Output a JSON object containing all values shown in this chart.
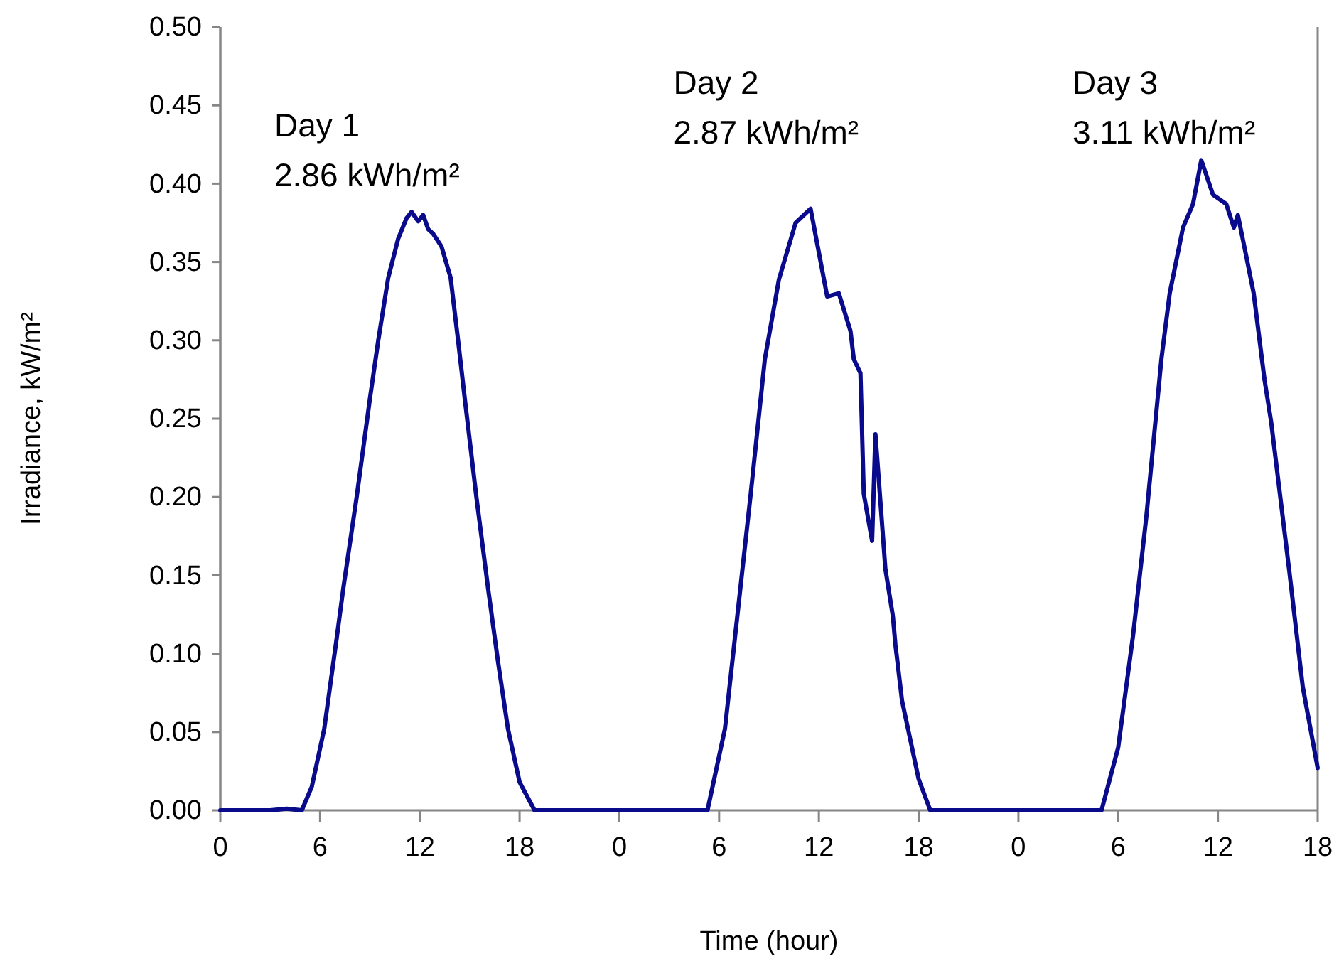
{
  "chart_data": [
    {
      "type": "line",
      "ylabel": "Irradiance, kW/m²",
      "xlim": [
        0,
        24
      ],
      "ylim": [
        0,
        0.5
      ],
      "xticks": [
        0,
        6,
        12,
        18
      ],
      "yticks": [
        {
          "value": 0,
          "label": "0.00"
        },
        {
          "value": 0.05,
          "label": "0.05"
        },
        {
          "value": 0.1,
          "label": "0.10"
        },
        {
          "value": 0.15,
          "label": "0.15"
        },
        {
          "value": 0.2,
          "label": "0.20"
        },
        {
          "value": 0.25,
          "label": "0.25"
        },
        {
          "value": 0.3,
          "label": "0.30"
        },
        {
          "value": 0.35,
          "label": "0.35"
        },
        {
          "value": 0.4,
          "label": "0.40"
        },
        {
          "value": 0.45,
          "label": "0.45"
        },
        {
          "value": 0.5,
          "label": "0.50"
        }
      ],
      "grid": false,
      "marker": "none",
      "line_style": "solid",
      "series": [
        {
          "color": "#0a0a8c",
          "x": [
            0,
            3,
            4,
            4.9,
            5.5,
            6.25,
            7,
            7.4,
            8.2,
            9,
            9.5,
            10.1,
            10.7,
            11.2,
            11.5,
            11.9,
            12.2,
            12.5,
            12.8,
            13.3,
            13.85,
            14.3,
            14.7,
            15.4,
            16.1,
            16.7,
            17.3,
            18,
            18.9,
            24
          ],
          "values": [
            0,
            0,
            0.001,
            0,
            0.015,
            0.052,
            0.11,
            0.142,
            0.2,
            0.263,
            0.3,
            0.34,
            0.365,
            0.378,
            0.382,
            0.376,
            0.38,
            0.371,
            0.368,
            0.36,
            0.34,
            0.3,
            0.263,
            0.2,
            0.142,
            0.095,
            0.052,
            0.018,
            0,
            0
          ]
        }
      ],
      "annotations": [
        "Day 1",
        "2.86 kWh/m²"
      ]
    },
    {
      "type": "line",
      "xlabel": "Time (hour)",
      "xlim": [
        0,
        24
      ],
      "ylim": [
        0,
        0.5
      ],
      "xticks": [
        0,
        6,
        12,
        18
      ],
      "tick_labels": "x",
      "marker": "none",
      "line_style": "solid",
      "series": [
        {
          "color": "#0a0a8c",
          "x": [
            0,
            5.3,
            6.35,
            7.9,
            8.75,
            9.6,
            10.6,
            11.5,
            12.5,
            13.2,
            13.9,
            14.1,
            14.5,
            14.7,
            15.2,
            15.4,
            16,
            16.45,
            16.6,
            17,
            18,
            18.7,
            24
          ],
          "values": [
            0,
            0,
            0.052,
            0.202,
            0.288,
            0.339,
            0.375,
            0.384,
            0.328,
            0.33,
            0.306,
            0.288,
            0.279,
            0.202,
            0.172,
            0.24,
            0.154,
            0.124,
            0.106,
            0.07,
            0.02,
            0,
            0
          ]
        }
      ],
      "annotations": [
        "Day 2",
        "2.87 kWh/m²"
      ]
    },
    {
      "type": "line",
      "xlim": [
        0,
        18
      ],
      "ylim": [
        0,
        0.5
      ],
      "xticks": [
        0,
        6,
        12,
        18
      ],
      "tick_labels": "x",
      "marker": "none",
      "line_style": "solid",
      "series": [
        {
          "color": "#0a0a8c",
          "x": [
            0,
            5,
            6,
            6.9,
            7.7,
            8.6,
            9.1,
            9.9,
            10.5,
            11,
            11.7,
            12.5,
            12.96,
            13.2,
            13.7,
            14.15,
            14.8,
            15.2,
            16.3,
            17.1,
            18
          ],
          "values": [
            0,
            0,
            0.04,
            0.112,
            0.188,
            0.288,
            0.33,
            0.372,
            0.387,
            0.415,
            0.393,
            0.387,
            0.372,
            0.38,
            0.354,
            0.33,
            0.275,
            0.248,
            0.152,
            0.079,
            0.027
          ]
        }
      ],
      "annotations": [
        "Day 3",
        "3.11 kWh/m²"
      ]
    }
  ]
}
